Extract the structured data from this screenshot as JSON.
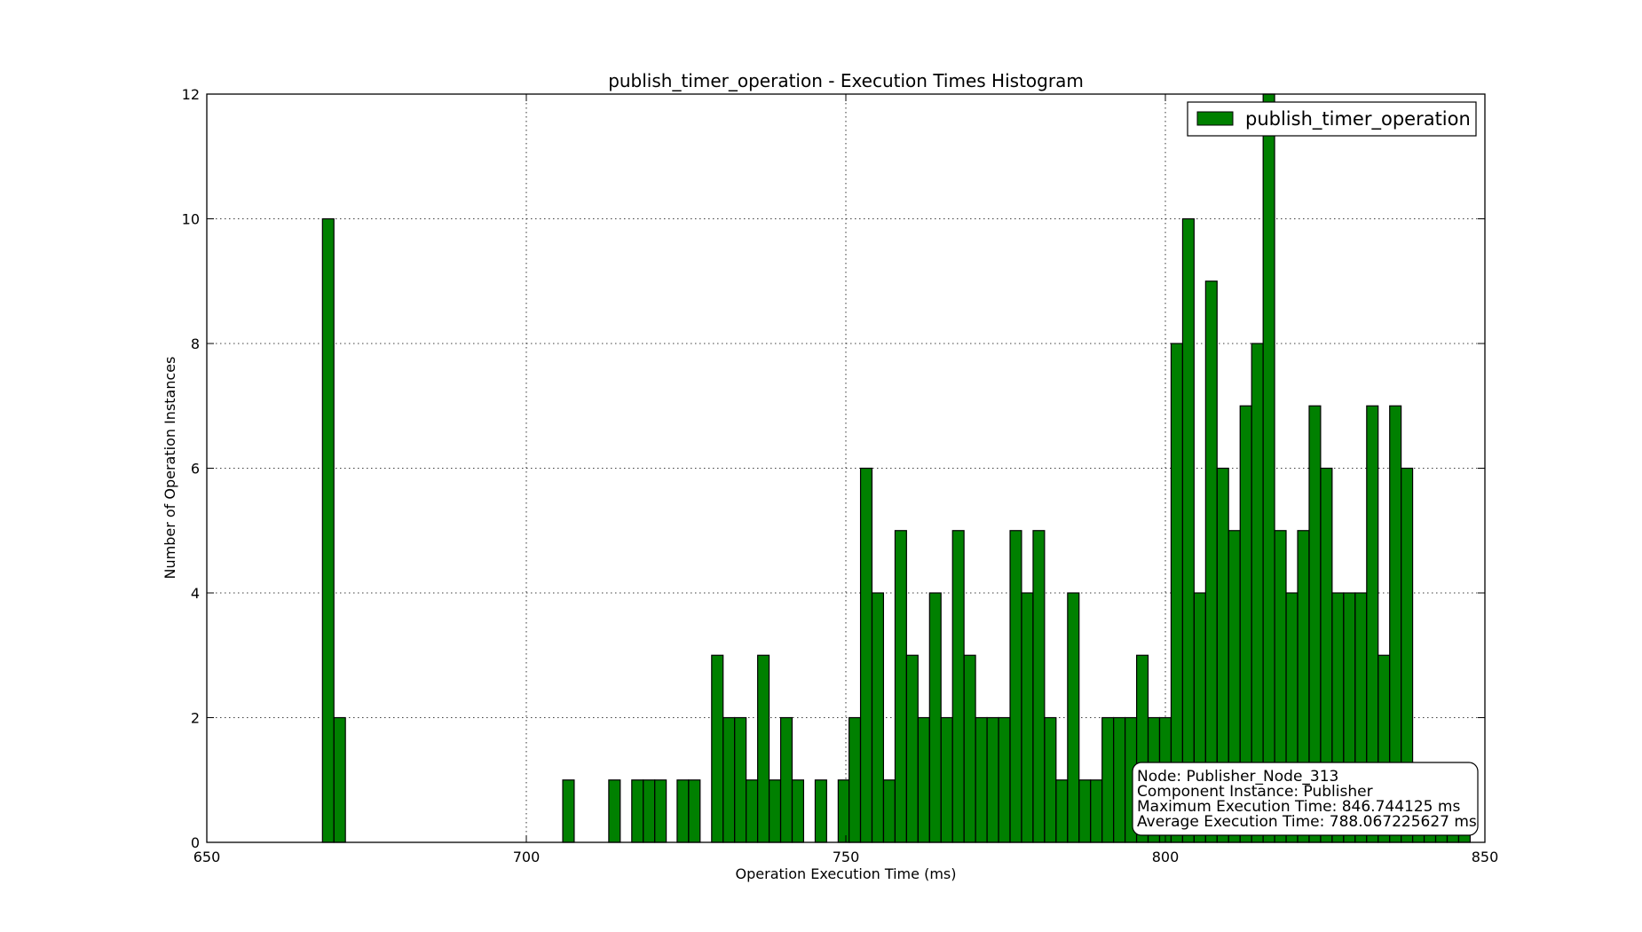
{
  "chart_data": {
    "type": "bar",
    "title": "publish_timer_operation - Execution Times Histogram",
    "xlabel": "Operation Execution Time (ms)",
    "ylabel": "Number of Operation Instances",
    "xlim": [
      650,
      850
    ],
    "ylim": [
      0,
      12
    ],
    "x_ticks": [
      "650",
      "700",
      "750",
      "800",
      "850"
    ],
    "y_ticks": [
      "0",
      "2",
      "4",
      "6",
      "8",
      "10",
      "12"
    ],
    "grid": true,
    "legend_position": "top-right",
    "bar_color": "#008000",
    "bin_width": 1.79,
    "series": [
      {
        "name": "publish_timer_operation",
        "bins": [
          {
            "x": 668.1,
            "count": 10
          },
          {
            "x": 669.9,
            "count": 2
          },
          {
            "x": 705.7,
            "count": 1
          },
          {
            "x": 712.9,
            "count": 1
          },
          {
            "x": 716.5,
            "count": 1
          },
          {
            "x": 718.3,
            "count": 1
          },
          {
            "x": 720.1,
            "count": 1
          },
          {
            "x": 723.6,
            "count": 1
          },
          {
            "x": 725.4,
            "count": 1
          },
          {
            "x": 729.0,
            "count": 3
          },
          {
            "x": 730.8,
            "count": 2
          },
          {
            "x": 732.6,
            "count": 2
          },
          {
            "x": 734.4,
            "count": 1
          },
          {
            "x": 736.2,
            "count": 3
          },
          {
            "x": 738.0,
            "count": 1
          },
          {
            "x": 739.8,
            "count": 2
          },
          {
            "x": 741.6,
            "count": 1
          },
          {
            "x": 745.2,
            "count": 1
          },
          {
            "x": 748.8,
            "count": 1
          },
          {
            "x": 750.5,
            "count": 2
          },
          {
            "x": 752.3,
            "count": 6
          },
          {
            "x": 754.1,
            "count": 4
          },
          {
            "x": 755.9,
            "count": 1
          },
          {
            "x": 757.7,
            "count": 5
          },
          {
            "x": 759.5,
            "count": 3
          },
          {
            "x": 761.3,
            "count": 2
          },
          {
            "x": 763.1,
            "count": 4
          },
          {
            "x": 764.9,
            "count": 2
          },
          {
            "x": 766.7,
            "count": 5
          },
          {
            "x": 768.5,
            "count": 3
          },
          {
            "x": 770.3,
            "count": 2
          },
          {
            "x": 772.1,
            "count": 2
          },
          {
            "x": 773.9,
            "count": 2
          },
          {
            "x": 775.7,
            "count": 5
          },
          {
            "x": 777.5,
            "count": 4
          },
          {
            "x": 779.3,
            "count": 5
          },
          {
            "x": 781.1,
            "count": 2
          },
          {
            "x": 782.9,
            "count": 1
          },
          {
            "x": 784.7,
            "count": 4
          },
          {
            "x": 786.5,
            "count": 1
          },
          {
            "x": 788.3,
            "count": 1
          },
          {
            "x": 790.1,
            "count": 2
          },
          {
            "x": 791.9,
            "count": 2
          },
          {
            "x": 793.7,
            "count": 2
          },
          {
            "x": 795.5,
            "count": 3
          },
          {
            "x": 797.3,
            "count": 2
          },
          {
            "x": 799.1,
            "count": 2
          },
          {
            "x": 800.9,
            "count": 8
          },
          {
            "x": 802.7,
            "count": 10
          },
          {
            "x": 804.5,
            "count": 4
          },
          {
            "x": 806.3,
            "count": 9
          },
          {
            "x": 808.1,
            "count": 6
          },
          {
            "x": 809.9,
            "count": 5
          },
          {
            "x": 811.7,
            "count": 7
          },
          {
            "x": 813.5,
            "count": 8
          },
          {
            "x": 815.3,
            "count": 12
          },
          {
            "x": 817.1,
            "count": 5
          },
          {
            "x": 818.9,
            "count": 4
          },
          {
            "x": 820.7,
            "count": 5
          },
          {
            "x": 822.5,
            "count": 7
          },
          {
            "x": 824.3,
            "count": 6
          },
          {
            "x": 826.1,
            "count": 4
          },
          {
            "x": 827.9,
            "count": 4
          },
          {
            "x": 829.7,
            "count": 4
          },
          {
            "x": 831.5,
            "count": 7
          },
          {
            "x": 833.3,
            "count": 3
          },
          {
            "x": 835.1,
            "count": 7
          },
          {
            "x": 836.9,
            "count": 6
          },
          {
            "x": 838.7,
            "count": 1
          },
          {
            "x": 840.5,
            "count": 1
          },
          {
            "x": 842.3,
            "count": 1
          },
          {
            "x": 844.1,
            "count": 1
          },
          {
            "x": 845.9,
            "count": 1
          }
        ]
      }
    ],
    "annotation": {
      "lines": [
        "Node: Publisher_Node_313",
        "Component Instance: Publisher",
        "Maximum Execution Time: 846.744125 ms",
        "Average Execution Time: 788.067225627 ms"
      ],
      "position": "bottom-right"
    }
  }
}
